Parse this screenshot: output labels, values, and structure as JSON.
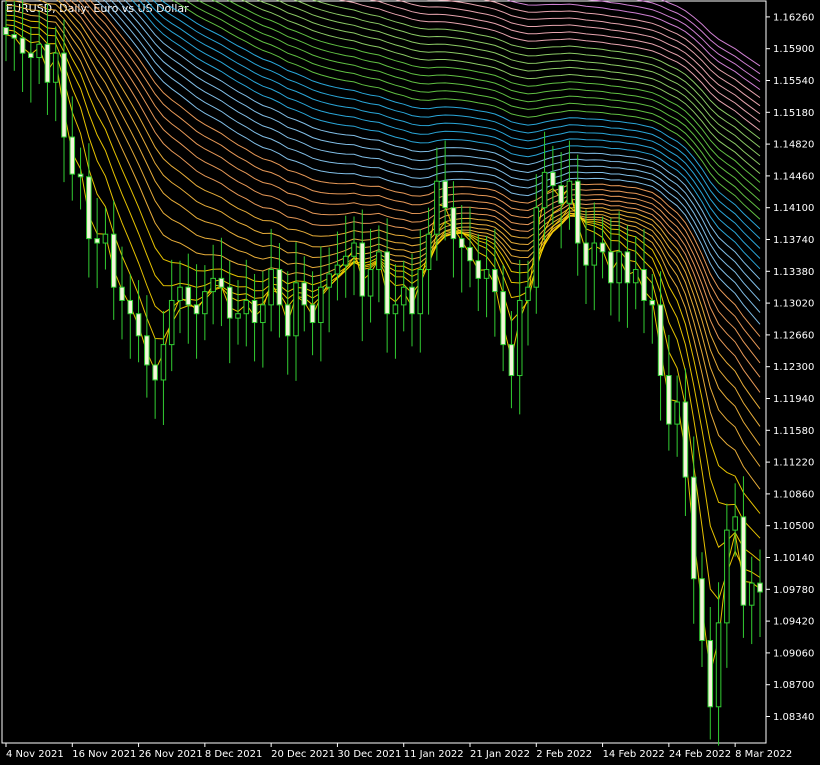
{
  "chart_data": {
    "type": "candlestick",
    "title": "EURUSD, Daily:  Euro vs US Dollar",
    "y_ticks": [
      1.1626,
      1.159,
      1.1554,
      1.1518,
      1.1482,
      1.1446,
      1.141,
      1.1374,
      1.1338,
      1.1302,
      1.1266,
      1.123,
      1.1194,
      1.1158,
      1.1122,
      1.1086,
      1.105,
      1.1014,
      1.0978,
      1.0942,
      1.0906,
      1.087,
      1.0834
    ],
    "y_tick_labels": [
      "1.16260",
      "1.15900",
      "1.15540",
      "1.15180",
      "1.14820",
      "1.14460",
      "1.14100",
      "1.13740",
      "1.13380",
      "1.13020",
      "1.12660",
      "1.12300",
      "1.11940",
      "1.11580",
      "1.11220",
      "1.10860",
      "1.10500",
      "1.10140",
      "1.09780",
      "1.09420",
      "1.09060",
      "1.08700",
      "1.08340"
    ],
    "ylim": [
      1.0804,
      1.1644
    ],
    "x_tick_labels": [
      "4 Nov 2021",
      "16 Nov 2021",
      "26 Nov 2021",
      "8 Dec 2021",
      "20 Dec 2021",
      "30 Dec 2021",
      "11 Jan 2022",
      "21 Jan 2022",
      "2 Feb 2022",
      "14 Feb 2022",
      "24 Feb 2022",
      "8 Mar 2022"
    ],
    "x_tick_bar_index": [
      0,
      8,
      16,
      24,
      32,
      40,
      48,
      56,
      64,
      72,
      80,
      88
    ],
    "candle_color": "#32cd32",
    "candle_body_up": "#000000",
    "candle_body_down": "#f5f5dc",
    "ribbon_colors": [
      "#ffd700",
      "#ffbf3f",
      "#ffa960",
      "#8fd3ff",
      "#2fb8f0",
      "#6bd44a",
      "#9be070",
      "#ffb6c1",
      "#e58ee9"
    ],
    "ribbon_note": "multiple moving averages",
    "closes": [
      1.1606,
      1.1602,
      1.1585,
      1.158,
      1.1595,
      1.1552,
      1.1585,
      1.149,
      1.1448,
      1.1445,
      1.1375,
      1.137,
      1.138,
      1.132,
      1.1305,
      1.129,
      1.1265,
      1.1232,
      1.1215,
      1.1255,
      1.1305,
      1.132,
      1.13,
      1.129,
      1.1315,
      1.133,
      1.132,
      1.1285,
      1.129,
      1.1305,
      1.128,
      1.13,
      1.134,
      1.13,
      1.1265,
      1.1325,
      1.13,
      1.128,
      1.132,
      1.1335,
      1.1345,
      1.1355,
      1.137,
      1.131,
      1.134,
      1.136,
      1.129,
      1.13,
      1.132,
      1.129,
      1.134,
      1.138,
      1.144,
      1.141,
      1.1375,
      1.1365,
      1.135,
      1.133,
      1.134,
      1.1315,
      1.1255,
      1.122,
      1.1305,
      1.132,
      1.141,
      1.145,
      1.1435,
      1.1415,
      1.144,
      1.137,
      1.1345,
      1.137,
      1.136,
      1.1325,
      1.136,
      1.1325,
      1.134,
      1.1305,
      1.13,
      1.122,
      1.1165,
      1.119,
      1.1105,
      1.099,
      1.092,
      1.0845,
      1.094,
      1.1045,
      1.106,
      1.096,
      1.0985,
      1.0975
    ]
  }
}
